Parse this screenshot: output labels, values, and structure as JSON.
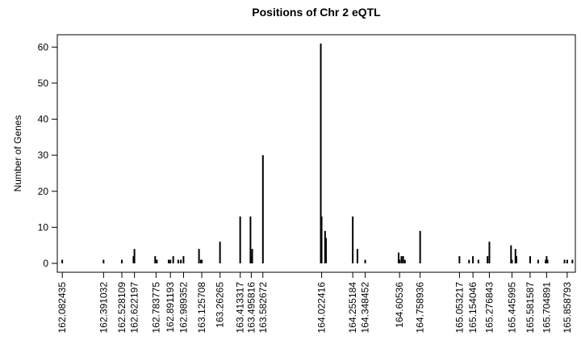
{
  "chart_data": {
    "type": "bar",
    "title": "Positions of Chr 2 eQTL",
    "ylabel": "Number of Genes",
    "xlabel": "",
    "xlim": [
      162.045,
      165.92
    ],
    "ylim": [
      0,
      62
    ],
    "yticks": [
      0,
      10,
      20,
      30,
      40,
      50,
      60
    ],
    "xtick_labels": [
      "162.082435",
      "162.391032",
      "162.528109",
      "162.622197",
      "162.783775",
      "162.891193",
      "162.989352",
      "163.125708",
      "163.26265",
      "163.413317",
      "163.495816",
      "163.582672",
      "164.022416",
      "164.255184",
      "164.348452",
      "164.60536",
      "164.758936",
      "165.053217",
      "165.154046",
      "165.276843",
      "165.445995",
      "165.581587",
      "165.704891",
      "165.858793"
    ],
    "points": [
      {
        "x": 162.082,
        "y": 1
      },
      {
        "x": 162.391,
        "y": 1
      },
      {
        "x": 162.528,
        "y": 1
      },
      {
        "x": 162.615,
        "y": 2
      },
      {
        "x": 162.622,
        "y": 4
      },
      {
        "x": 162.777,
        "y": 2
      },
      {
        "x": 162.784,
        "y": 1
      },
      {
        "x": 162.79,
        "y": 1
      },
      {
        "x": 162.878,
        "y": 1
      },
      {
        "x": 162.891,
        "y": 1
      },
      {
        "x": 162.912,
        "y": 2
      },
      {
        "x": 162.95,
        "y": 1
      },
      {
        "x": 162.969,
        "y": 1
      },
      {
        "x": 162.989,
        "y": 2
      },
      {
        "x": 163.105,
        "y": 4
      },
      {
        "x": 163.119,
        "y": 1
      },
      {
        "x": 163.126,
        "y": 1
      },
      {
        "x": 163.262,
        "y": 6
      },
      {
        "x": 163.413,
        "y": 13
      },
      {
        "x": 163.49,
        "y": 13
      },
      {
        "x": 163.496,
        "y": 2
      },
      {
        "x": 163.503,
        "y": 4
      },
      {
        "x": 163.583,
        "y": 30
      },
      {
        "x": 164.016,
        "y": 61
      },
      {
        "x": 164.022,
        "y": 13
      },
      {
        "x": 164.048,
        "y": 9
      },
      {
        "x": 164.055,
        "y": 7
      },
      {
        "x": 164.255,
        "y": 13
      },
      {
        "x": 164.29,
        "y": 4
      },
      {
        "x": 164.348,
        "y": 1
      },
      {
        "x": 164.598,
        "y": 3
      },
      {
        "x": 164.605,
        "y": 1
      },
      {
        "x": 164.619,
        "y": 2
      },
      {
        "x": 164.632,
        "y": 2
      },
      {
        "x": 164.645,
        "y": 1
      },
      {
        "x": 164.759,
        "y": 9
      },
      {
        "x": 165.053,
        "y": 2
      },
      {
        "x": 165.125,
        "y": 1
      },
      {
        "x": 165.154,
        "y": 2
      },
      {
        "x": 165.195,
        "y": 1
      },
      {
        "x": 165.263,
        "y": 2
      },
      {
        "x": 165.277,
        "y": 6
      },
      {
        "x": 165.439,
        "y": 5
      },
      {
        "x": 165.446,
        "y": 1
      },
      {
        "x": 165.472,
        "y": 4
      },
      {
        "x": 165.479,
        "y": 2
      },
      {
        "x": 165.582,
        "y": 2
      },
      {
        "x": 165.642,
        "y": 1
      },
      {
        "x": 165.698,
        "y": 1
      },
      {
        "x": 165.705,
        "y": 2
      },
      {
        "x": 165.712,
        "y": 1
      },
      {
        "x": 165.839,
        "y": 1
      },
      {
        "x": 165.859,
        "y": 1
      },
      {
        "x": 165.898,
        "y": 1
      }
    ],
    "grid": false,
    "legend": "none",
    "bar_color": "#000000"
  }
}
